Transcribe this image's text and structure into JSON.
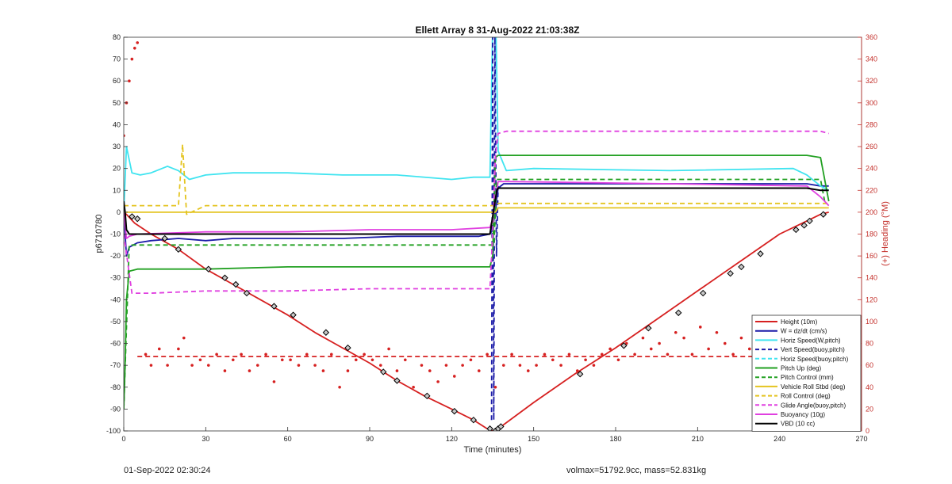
{
  "footer": {
    "timestamp": "01-Sep-2022 02:30:24",
    "mass_info": "volmax=51792.9cc, mass=52.831kg"
  },
  "chart_data": {
    "type": "line",
    "title": "Ellett Array 8 31-Aug-2022 21:03:38Z",
    "xlabel": "Time (minutes)",
    "ylabel": "p6710780",
    "y2label": "(+) Heading (°M)",
    "xlim": [
      0,
      270
    ],
    "ylim": [
      -100,
      80
    ],
    "y2lim": [
      0,
      360
    ],
    "xticks": [
      0,
      30,
      60,
      90,
      120,
      150,
      180,
      210,
      240,
      270
    ],
    "yticks": [
      -100,
      -90,
      -80,
      -70,
      -60,
      -50,
      -40,
      -30,
      -20,
      -10,
      0,
      10,
      20,
      30,
      40,
      50,
      60,
      70,
      80
    ],
    "y2ticks": [
      0,
      20,
      40,
      60,
      80,
      100,
      120,
      140,
      160,
      180,
      200,
      220,
      240,
      260,
      280,
      300,
      320,
      340,
      360
    ],
    "grid": false,
    "legend_position": "bottom-right",
    "legend": [
      {
        "label": "Height (10m)",
        "color": "#d62020",
        "dash": "solid"
      },
      {
        "label": "W = dz/dt (cm/s)",
        "color": "#1c1ca8",
        "dash": "solid"
      },
      {
        "label": "Horiz Speed(W,pitch)",
        "color": "#40e4f0",
        "dash": "solid"
      },
      {
        "label": "Vert Speed(buoy,pitch)",
        "color": "#1c1ca8",
        "dash": "dash"
      },
      {
        "label": "Horiz Speed(buoy,pitch)",
        "color": "#40e4f0",
        "dash": "dash"
      },
      {
        "label": "Pitch Up (deg)",
        "color": "#22a022",
        "dash": "solid"
      },
      {
        "label": "Pitch Control (mm)",
        "color": "#22a022",
        "dash": "dash"
      },
      {
        "label": "Vehicle Roll Stbd (deg)",
        "color": "#e4c420",
        "dash": "solid"
      },
      {
        "label": "Roll Control (deg)",
        "color": "#e4c420",
        "dash": "dash"
      },
      {
        "label": "Glide Angle(buoy,pitch)",
        "color": "#e040e0",
        "dash": "dash"
      },
      {
        "label": "Buoyancy (10g)",
        "color": "#e040e0",
        "dash": "solid"
      },
      {
        "label": "VBD (10 cc)",
        "color": "#000000",
        "dash": "solid"
      }
    ],
    "series": [
      {
        "name": "Height (10m)",
        "axis": "left",
        "color": "#d62020",
        "x": [
          0,
          1,
          4,
          10,
          20,
          30,
          40,
          50,
          60,
          70,
          80,
          90,
          100,
          110,
          120,
          128,
          133,
          135,
          137,
          150,
          165,
          180,
          195,
          210,
          225,
          240,
          250,
          255,
          258
        ],
        "y": [
          0,
          -1,
          -5,
          -10,
          -17,
          -26,
          -33,
          -40,
          -47,
          -55,
          -62,
          -69,
          -77,
          -84,
          -90,
          -95,
          -99,
          -100,
          -99,
          -87,
          -74,
          -62,
          -49,
          -36,
          -23,
          -10,
          -4,
          -1,
          0
        ]
      },
      {
        "name": "W = dz/dt (cm/s)",
        "axis": "left",
        "color": "#1c1ca8",
        "x": [
          0,
          1,
          2,
          5,
          10,
          20,
          30,
          40,
          60,
          80,
          100,
          120,
          130,
          134,
          135,
          137,
          139,
          150,
          200,
          250,
          255,
          258
        ],
        "y": [
          0,
          -20,
          -16,
          -14,
          -13,
          -12,
          -13,
          -12,
          -12,
          -12,
          -11,
          -11,
          -11,
          -10,
          -8,
          11,
          13,
          13,
          13,
          13,
          12,
          12
        ]
      },
      {
        "name": "Horiz Speed(W,pitch)",
        "axis": "left",
        "color": "#40e4f0",
        "x": [
          0,
          1,
          3,
          6,
          10,
          16,
          20,
          24,
          30,
          40,
          60,
          80,
          100,
          120,
          128,
          134,
          135,
          135.6,
          136.2,
          137,
          140,
          150,
          200,
          245,
          250,
          255,
          258
        ],
        "y": [
          0,
          30,
          18,
          17,
          18,
          21,
          19,
          15,
          17,
          18,
          18,
          17,
          17,
          15,
          16,
          16,
          85,
          80,
          85,
          28,
          19,
          20,
          19,
          20,
          17,
          12,
          10
        ]
      },
      {
        "name": "Vert Speed(buoy,pitch)",
        "axis": "left",
        "color": "#1c1ca8",
        "dash": "dash",
        "x": [
          134.6,
          135,
          135.4,
          135.8,
          136.4,
          137
        ],
        "y": [
          -95,
          80,
          -95,
          80,
          -20,
          12
        ]
      },
      {
        "name": "Pitch Up (deg)",
        "axis": "left",
        "color": "#22a022",
        "x": [
          0,
          0.5,
          1,
          2,
          5,
          10,
          30,
          60,
          90,
          120,
          134,
          135,
          136,
          137,
          140,
          200,
          250,
          255,
          258
        ],
        "y": [
          -90,
          -70,
          -40,
          -27,
          -26,
          -26,
          -26,
          -25,
          -25,
          -25,
          -25,
          -20,
          25,
          26,
          26,
          26,
          26,
          25,
          5
        ]
      },
      {
        "name": "Pitch Control (mm)",
        "axis": "left",
        "color": "#22a022",
        "dash": "dash",
        "x": [
          0,
          2,
          5,
          134,
          135.5,
          136.5,
          137,
          255,
          256.5
        ],
        "y": [
          -90,
          -15,
          -15,
          -15,
          -15,
          15,
          15,
          15,
          5
        ]
      },
      {
        "name": "Vehicle Roll Stbd (deg)",
        "axis": "left",
        "color": "#e4c420",
        "x": [
          0,
          20,
          21.5,
          23,
          30,
          60,
          90,
          120,
          134,
          136,
          137,
          150,
          160,
          166,
          180,
          200,
          220,
          240,
          255,
          258
        ],
        "y": [
          0,
          0,
          0,
          0,
          0,
          0,
          0,
          0,
          0,
          0,
          2,
          2,
          2,
          2,
          2,
          2,
          2,
          2,
          2,
          2
        ]
      },
      {
        "name": "Roll Control (deg)",
        "axis": "left",
        "color": "#e4c420",
        "dash": "dash",
        "x": [
          0,
          20,
          21.5,
          23,
          30,
          60,
          90,
          120,
          134,
          136,
          137,
          150,
          200,
          255,
          258
        ],
        "y": [
          3,
          3,
          31,
          -1,
          3,
          3,
          3,
          3,
          3,
          3,
          4,
          4,
          4,
          4,
          4
        ]
      },
      {
        "name": "Glide Angle(buoy,pitch)",
        "axis": "left",
        "color": "#e040e0",
        "dash": "dash",
        "x": [
          0,
          3,
          10,
          30,
          60,
          90,
          120,
          134,
          135,
          136,
          137,
          140,
          200,
          250,
          255,
          258
        ],
        "y": [
          -10,
          -37,
          -37,
          -36,
          -36,
          -35,
          -35,
          -35,
          -10,
          25,
          36,
          37,
          37,
          37,
          37,
          36
        ]
      },
      {
        "name": "Buoyancy (10g)",
        "axis": "left",
        "color": "#e040e0",
        "x": [
          0,
          1,
          2,
          5,
          30,
          60,
          90,
          120,
          134,
          135,
          137,
          140,
          200,
          250,
          255,
          258
        ],
        "y": [
          0,
          -12,
          -11,
          -10,
          -9,
          -9,
          -8,
          -8,
          -7,
          -3,
          14,
          14,
          13,
          12,
          7,
          3
        ]
      },
      {
        "name": "VBD (10 cc)",
        "axis": "left",
        "color": "#000000",
        "x": [
          0,
          0.5,
          1,
          1.5,
          2,
          5,
          30,
          60,
          90,
          120,
          134,
          135,
          136.5,
          137,
          140,
          200,
          250,
          255,
          256,
          258
        ],
        "y": [
          5,
          0,
          -8,
          -9,
          -10,
          -10,
          -10,
          -10,
          -10,
          -10,
          -10,
          -2,
          10,
          11,
          11,
          11,
          11,
          10,
          10,
          10
        ]
      },
      {
        "name": "Heading",
        "axis": "right",
        "color": "#d62020",
        "style": "dots",
        "x": [
          0,
          1,
          2,
          3,
          4,
          5,
          8,
          10,
          13,
          16,
          20,
          22,
          25,
          28,
          31,
          34,
          37,
          40,
          43,
          46,
          49,
          52,
          55,
          58,
          61,
          64,
          67,
          70,
          73,
          76,
          79,
          82,
          85,
          88,
          91,
          94,
          97,
          100,
          103,
          106,
          109,
          112,
          115,
          118,
          121,
          124,
          127,
          130,
          133,
          136,
          139,
          142,
          145,
          148,
          151,
          154,
          157,
          160,
          163,
          166,
          169,
          172,
          175,
          178,
          181,
          184,
          187,
          190,
          193,
          196,
          199,
          202,
          205,
          208,
          211,
          214,
          217,
          220,
          223,
          226,
          229,
          232,
          235,
          238,
          241,
          244,
          247,
          250,
          253,
          255,
          257,
          258
        ],
        "y": [
          270,
          300,
          320,
          340,
          350,
          355,
          70,
          60,
          75,
          60,
          75,
          85,
          60,
          65,
          60,
          70,
          55,
          65,
          70,
          55,
          60,
          70,
          45,
          65,
          65,
          60,
          70,
          60,
          55,
          70,
          40,
          55,
          65,
          70,
          65,
          60,
          75,
          55,
          65,
          40,
          60,
          55,
          45,
          60,
          50,
          60,
          65,
          55,
          70,
          40,
          60,
          70,
          60,
          55,
          60,
          70,
          65,
          60,
          70,
          55,
          65,
          60,
          70,
          75,
          65,
          80,
          70,
          85,
          75,
          80,
          70,
          90,
          85,
          70,
          95,
          75,
          90,
          80,
          70,
          85,
          75,
          70,
          80,
          65,
          75,
          85,
          70,
          65,
          80,
          70,
          75,
          70
        ]
      },
      {
        "name": "Heading desired",
        "axis": "right",
        "color": "#d62020",
        "dash": "dash",
        "x": [
          5,
          258
        ],
        "y": [
          68,
          68
        ]
      },
      {
        "name": "Height markers",
        "axis": "left",
        "color": "#000000",
        "style": "markers",
        "x": [
          3,
          5,
          15,
          20,
          31,
          37,
          41,
          45,
          55,
          62,
          74,
          82,
          95,
          100,
          111,
          121,
          128,
          134,
          136,
          137,
          138,
          167,
          183,
          192,
          203,
          212,
          222,
          226,
          233,
          246,
          249,
          251,
          256
        ],
        "y": [
          -2,
          -3,
          -12,
          -17,
          -26,
          -30,
          -33,
          -37,
          -43,
          -47,
          -55,
          -62,
          -73,
          -77,
          -84,
          -91,
          -95,
          -99,
          -100,
          -99,
          -98,
          -74,
          -61,
          -53,
          -46,
          -37,
          -28,
          -25,
          -19,
          -8,
          -6,
          -4,
          -1
        ]
      }
    ]
  }
}
